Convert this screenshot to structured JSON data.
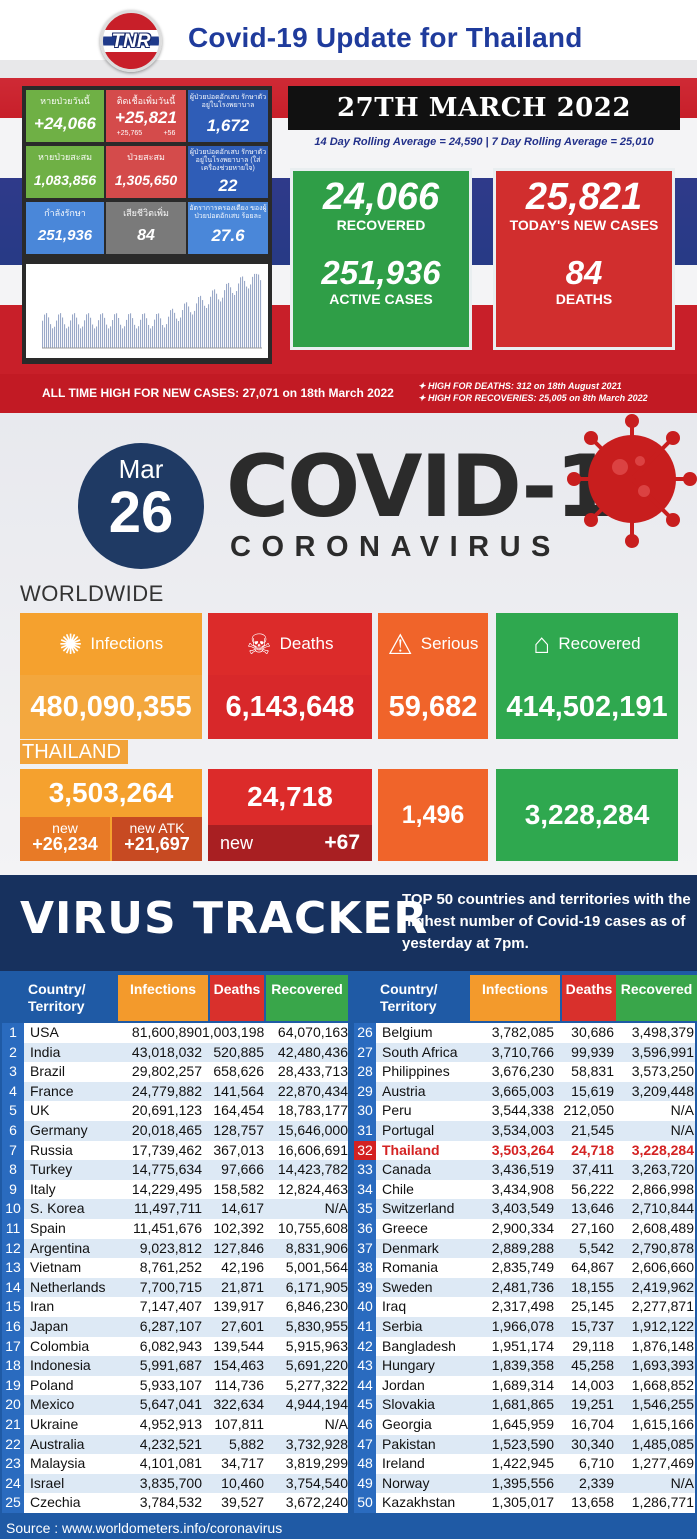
{
  "tnr": {
    "logo": "TNR",
    "title": "Covid-19 Update for Thailand",
    "date": "27TH MARCH 2022",
    "rolling": "14 Day Rolling Average = 24,590 |  7 Day Rolling Average = 25,010",
    "tiles": [
      {
        "label": "หายป่วยวันนี้",
        "value": "+24,066"
      },
      {
        "label": "ติดเชื้อเพิ่มวันนี้",
        "value": "+25,821",
        "sub1": "+25,765",
        "sub2": "+56"
      },
      {
        "label": "ผู้ป่วยปอดอักเสบ รักษาตัวอยู่ในโรงพยาบาล",
        "value": "1,672"
      },
      {
        "label": "หายป่วยสะสม",
        "value": "1,083,856"
      },
      {
        "label": "ป่วยสะสม",
        "value": "1,305,650"
      },
      {
        "label": "ผู้ป่วยปอดอักเสบ รักษาตัวอยู่ในโรงพยาบาล (ใส่เครื่องช่วยหายใจ)",
        "value": "22"
      },
      {
        "label": "กำลังรักษา",
        "value": "251,936"
      },
      {
        "label": "เสียชีวิตเพิ่ม",
        "value": "84"
      },
      {
        "label": "อัตราการครองเตียง ของผู้ป่วยปอดอักเสบ ร้อยละ",
        "value": "27.6"
      }
    ],
    "recovered_value": "24,066",
    "recovered_label": "RECOVERED",
    "active_value": "251,936",
    "active_label": "ACTIVE CASES",
    "new_cases_value": "25,821",
    "new_cases_label": "TODAY'S NEW CASES",
    "deaths_value": "84",
    "deaths_label": "DEATHS",
    "all_time_high": "ALL TIME HIGH FOR NEW CASES: 27,071 on 18th March 2022",
    "high_deaths": "HIGH FOR DEATHS: 312 on 18th August 2021",
    "high_recoveries": "HIGH FOR RECOVERIES: 25,005 on 8th March 2022"
  },
  "worldwide": {
    "month": "Mar",
    "day": "26",
    "headline": "COVID-19",
    "subheadline": "CORONAVIRUS",
    "section_label": "WORLDWIDE",
    "infections_label": "Infections",
    "infections": "480,090,355",
    "deaths_label": "Deaths",
    "deaths": "6,143,648",
    "serious_label": "Serious",
    "serious": "59,682",
    "recovered_label": "Recovered",
    "recovered": "414,502,191"
  },
  "thailand": {
    "section_label": "THAILAND",
    "infections": "3,503,264",
    "new_label": "new",
    "new": "+26,234",
    "new_atk_label": "new ATK",
    "new_atk": "+21,697",
    "deaths": "24,718",
    "deaths_new_label": "new",
    "deaths_new": "+67",
    "serious": "1,496",
    "recovered": "3,228,284"
  },
  "tracker": {
    "title": "VIRUS TRACKER",
    "description_bold": "TOP 50",
    "description": " countries and territories with the highest number of Covid-19 cases as of yesterday at 7pm.",
    "col_country": "Country/ Territory",
    "col_infections": "Infections",
    "col_deaths": "Deaths",
    "col_recovered": "Recovered",
    "source": "Source : www.worldometers.info/coronavirus",
    "rows": [
      [
        "1",
        "USA",
        "81,600,890",
        "1,003,198",
        "64,070,163"
      ],
      [
        "2",
        "India",
        "43,018,032",
        "520,885",
        "42,480,436"
      ],
      [
        "3",
        "Brazil",
        "29,802,257",
        "658,626",
        "28,433,713"
      ],
      [
        "4",
        "France",
        "24,779,882",
        "141,564",
        "22,870,434"
      ],
      [
        "5",
        "UK",
        "20,691,123",
        "164,454",
        "18,783,177"
      ],
      [
        "6",
        "Germany",
        "20,018,465",
        "128,757",
        "15,646,000"
      ],
      [
        "7",
        "Russia",
        "17,739,462",
        "367,013",
        "16,606,691"
      ],
      [
        "8",
        "Turkey",
        "14,775,634",
        "97,666",
        "14,423,782"
      ],
      [
        "9",
        "Italy",
        "14,229,495",
        "158,582",
        "12,824,463"
      ],
      [
        "10",
        "S. Korea",
        "11,497,711",
        "14,617",
        "N/A"
      ],
      [
        "11",
        "Spain",
        "11,451,676",
        "102,392",
        "10,755,608"
      ],
      [
        "12",
        "Argentina",
        "9,023,812",
        "127,846",
        "8,831,906"
      ],
      [
        "13",
        "Vietnam",
        "8,761,252",
        "42,196",
        "5,001,564"
      ],
      [
        "14",
        "Netherlands",
        "7,700,715",
        "21,871",
        "6,171,905"
      ],
      [
        "15",
        "Iran",
        "7,147,407",
        "139,917",
        "6,846,230"
      ],
      [
        "16",
        "Japan",
        "6,287,107",
        "27,601",
        "5,830,955"
      ],
      [
        "17",
        "Colombia",
        "6,082,943",
        "139,544",
        "5,915,963"
      ],
      [
        "18",
        "Indonesia",
        "5,991,687",
        "154,463",
        "5,691,220"
      ],
      [
        "19",
        "Poland",
        "5,933,107",
        "114,736",
        "5,277,322"
      ],
      [
        "20",
        "Mexico",
        "5,647,041",
        "322,634",
        "4,944,194"
      ],
      [
        "21",
        "Ukraine",
        "4,952,913",
        "107,811",
        "N/A"
      ],
      [
        "22",
        "Australia",
        "4,232,521",
        "5,882",
        "3,732,928"
      ],
      [
        "23",
        "Malaysia",
        "4,101,081",
        "34,717",
        "3,819,299"
      ],
      [
        "24",
        "Israel",
        "3,835,700",
        "10,460",
        "3,754,540"
      ],
      [
        "25",
        "Czechia",
        "3,784,532",
        "39,527",
        "3,672,240"
      ],
      [
        "26",
        "Belgium",
        "3,782,085",
        "30,686",
        "3,498,379"
      ],
      [
        "27",
        "South Africa",
        "3,710,766",
        "99,939",
        "3,596,991"
      ],
      [
        "28",
        "Philippines",
        "3,676,230",
        "58,831",
        "3,573,250"
      ],
      [
        "29",
        "Austria",
        "3,665,003",
        "15,619",
        "3,209,448"
      ],
      [
        "30",
        "Peru",
        "3,544,338",
        "212,050",
        "N/A"
      ],
      [
        "31",
        "Portugal",
        "3,534,003",
        "21,545",
        "N/A"
      ],
      [
        "32",
        "Thailand",
        "3,503,264",
        "24,718",
        "3,228,284"
      ],
      [
        "33",
        "Canada",
        "3,436,519",
        "37,411",
        "3,263,720"
      ],
      [
        "34",
        "Chile",
        "3,434,908",
        "56,222",
        "2,866,998"
      ],
      [
        "35",
        "Switzerland",
        "3,403,549",
        "13,646",
        "2,710,844"
      ],
      [
        "36",
        "Greece",
        "2,900,334",
        "27,160",
        "2,608,489"
      ],
      [
        "37",
        "Denmark",
        "2,889,288",
        "5,542",
        "2,790,878"
      ],
      [
        "38",
        "Romania",
        "2,835,749",
        "64,867",
        "2,606,660"
      ],
      [
        "39",
        "Sweden",
        "2,481,736",
        "18,155",
        "2,419,962"
      ],
      [
        "40",
        "Iraq",
        "2,317,498",
        "25,145",
        "2,277,871"
      ],
      [
        "41",
        "Serbia",
        "1,966,078",
        "15,737",
        "1,912,122"
      ],
      [
        "42",
        "Bangladesh",
        "1,951,174",
        "29,118",
        "1,876,148"
      ],
      [
        "43",
        "Hungary",
        "1,839,358",
        "45,258",
        "1,693,393"
      ],
      [
        "44",
        "Jordan",
        "1,689,314",
        "14,003",
        "1,668,852"
      ],
      [
        "45",
        "Slovakia",
        "1,681,865",
        "19,251",
        "1,546,255"
      ],
      [
        "46",
        "Georgia",
        "1,645,959",
        "16,704",
        "1,615,166"
      ],
      [
        "47",
        "Pakistan",
        "1,523,590",
        "30,340",
        "1,485,085"
      ],
      [
        "48",
        "Ireland",
        "1,422,945",
        "6,710",
        "1,277,469"
      ],
      [
        "49",
        "Norway",
        "1,395,556",
        "2,339",
        "N/A"
      ],
      [
        "50",
        "Kazakhstan",
        "1,305,017",
        "13,658",
        "1,286,771"
      ]
    ],
    "highlight_rank": "32"
  },
  "colors": {
    "tnr_blue": "#1f3b9c",
    "thai_red": "#c81f29",
    "green": "#2f9e47",
    "orange": "#f5a12e",
    "tracker_blue": "#1f5aa5"
  }
}
